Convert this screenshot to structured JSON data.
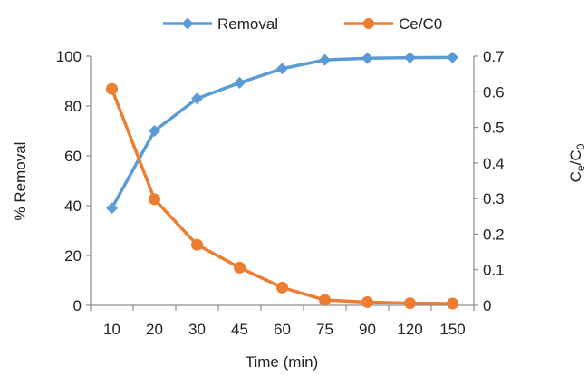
{
  "chart_data": {
    "type": "line",
    "xlabel": "Time (min)",
    "ylabel": "% Removal",
    "y2label": {
      "main1": "C",
      "sub1": "e",
      "main2": "/C",
      "sub2": "0"
    },
    "categories": [
      "10",
      "20",
      "30",
      "45",
      "60",
      "75",
      "90",
      "120",
      "150"
    ],
    "ylim": [
      0,
      100
    ],
    "y_ticks": [
      "0",
      "20",
      "40",
      "60",
      "80",
      "100"
    ],
    "y2lim": [
      0,
      0.7
    ],
    "y2_ticks": [
      "0",
      "0.1",
      "0.2",
      "0.3",
      "0.4",
      "0.5",
      "0.6",
      "0.7"
    ],
    "grid": false,
    "legend_position": "top",
    "series": [
      {
        "name": "Removal",
        "axis": "left",
        "color": "#5B9BD5",
        "marker": "diamond",
        "values": [
          39,
          70,
          83,
          89.3,
          95,
          98.5,
          99.2,
          99.4,
          99.5
        ]
      },
      {
        "name": "Ce/C0",
        "axis": "right",
        "color": "#ED7D31",
        "marker": "circle",
        "values": [
          0.608,
          0.298,
          0.17,
          0.106,
          0.05,
          0.015,
          0.009,
          0.006,
          0.005
        ]
      }
    ]
  }
}
